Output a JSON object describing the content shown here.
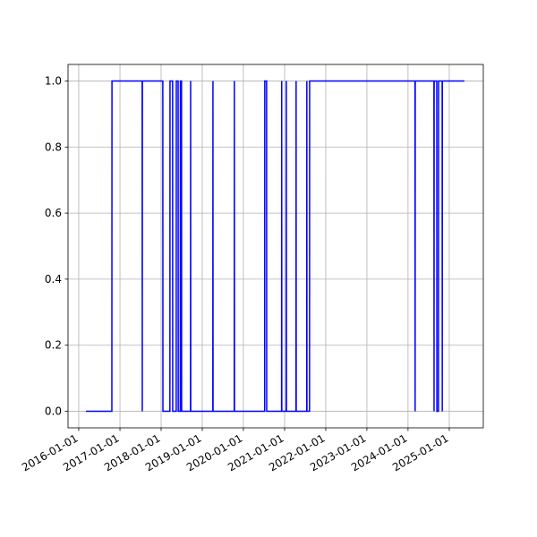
{
  "chart_data": {
    "type": "line",
    "x": [
      "2016-03-05",
      "2016-10-21",
      "2016-10-22",
      "2017-07-17",
      "2017-07-18",
      "2017-07-19",
      "2018-01-16",
      "2018-01-17",
      "2018-03-20",
      "2018-03-21",
      "2018-04-13",
      "2018-04-14",
      "2018-05-15",
      "2018-05-16",
      "2018-06-01",
      "2018-06-02",
      "2018-06-20",
      "2018-06-21",
      "2018-07-01",
      "2018-07-02",
      "2018-09-19",
      "2018-09-20",
      "2018-09-21",
      "2019-04-05",
      "2019-04-06",
      "2019-04-07",
      "2019-10-12",
      "2019-10-13",
      "2019-10-14",
      "2020-07-08",
      "2020-07-09",
      "2020-07-25",
      "2020-07-26",
      "2020-12-05",
      "2020-12-06",
      "2020-12-07",
      "2021-01-15",
      "2021-01-16",
      "2021-01-17",
      "2021-04-12",
      "2021-04-13",
      "2021-04-14",
      "2021-07-16",
      "2021-07-17",
      "2021-07-18",
      "2021-08-10",
      "2021-08-11",
      "2024-03-03",
      "2024-03-04",
      "2024-03-05",
      "2024-08-18",
      "2024-08-19",
      "2024-08-20",
      "2024-09-12",
      "2024-09-13",
      "2024-09-27",
      "2024-09-28",
      "2024-10-30",
      "2024-10-31",
      "2024-11-01",
      "2025-05-15"
    ],
    "series": [
      {
        "color": "blue",
        "values": [
          0,
          0,
          1,
          1,
          0,
          1,
          1,
          0,
          0,
          1,
          1,
          0,
          0,
          1,
          1,
          0,
          0,
          1,
          1,
          0,
          0,
          1,
          0,
          0,
          1,
          0,
          0,
          1,
          0,
          0,
          1,
          1,
          0,
          0,
          1,
          0,
          0,
          1,
          0,
          0,
          1,
          0,
          0,
          1,
          0,
          0,
          1,
          1,
          0,
          1,
          1,
          0,
          1,
          1,
          0,
          0,
          1,
          1,
          0,
          1,
          1
        ]
      }
    ],
    "xlim": [
      "2015-09-28",
      "2025-10-30"
    ],
    "xticks": [
      "2016-01-01",
      "2017-01-01",
      "2018-01-01",
      "2019-01-01",
      "2020-01-01",
      "2021-01-01",
      "2022-01-01",
      "2023-01-01",
      "2024-01-01",
      "2025-01-01"
    ],
    "ylim": [
      -0.05,
      1.05
    ],
    "yticks": [
      {
        "value": 0,
        "label": "0.0"
      },
      {
        "value": 0.2,
        "label": "0.2"
      },
      {
        "value": 0.4,
        "label": "0.4"
      },
      {
        "value": 0.6,
        "label": "0.6"
      },
      {
        "value": 0.8,
        "label": "0.8"
      },
      {
        "value": 1,
        "label": "1.0"
      }
    ],
    "grid": true
  }
}
